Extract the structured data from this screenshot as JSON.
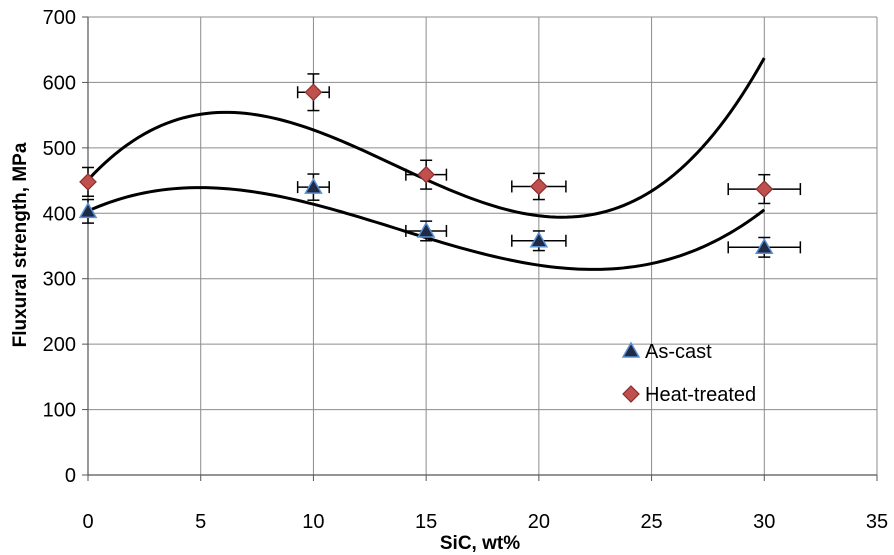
{
  "chart_data": {
    "type": "scatter",
    "title": "",
    "xlabel": "SiC, wt%",
    "ylabel": "Fluxural strength, MPa",
    "xlim": [
      0,
      35
    ],
    "ylim": [
      0,
      700
    ],
    "xticks": [
      0,
      5,
      10,
      15,
      20,
      25,
      30,
      35
    ],
    "yticks": [
      0,
      100,
      200,
      300,
      400,
      500,
      600,
      700
    ],
    "grid": true,
    "legend_position": "right",
    "series": [
      {
        "name": "As-cast",
        "marker": "triangle",
        "color": "#1f2a44",
        "edge_color": "#5b8fd6",
        "x": [
          0,
          10,
          15,
          20,
          30
        ],
        "y": [
          403,
          440,
          373,
          358,
          348
        ],
        "x_err": [
          0,
          0.7,
          0.9,
          1.2,
          1.6
        ],
        "y_err": [
          18,
          20,
          15,
          15,
          15
        ],
        "trend_poly": [
          403.5,
          15.6,
          -1.925,
          0.0469
        ]
      },
      {
        "name": "Heat-treated",
        "marker": "diamond",
        "color": "#c0504d",
        "edge_color": "#8b2e2e",
        "x": [
          0,
          10,
          15,
          20,
          30
        ],
        "y": [
          448,
          585,
          459,
          441,
          437
        ],
        "x_err": [
          0,
          0.7,
          0.9,
          1.2,
          1.6
        ],
        "y_err": [
          22,
          28,
          22,
          20,
          22
        ],
        "trend_poly": [
          451,
          37.35,
          -3.938,
          0.09667
        ]
      }
    ]
  }
}
